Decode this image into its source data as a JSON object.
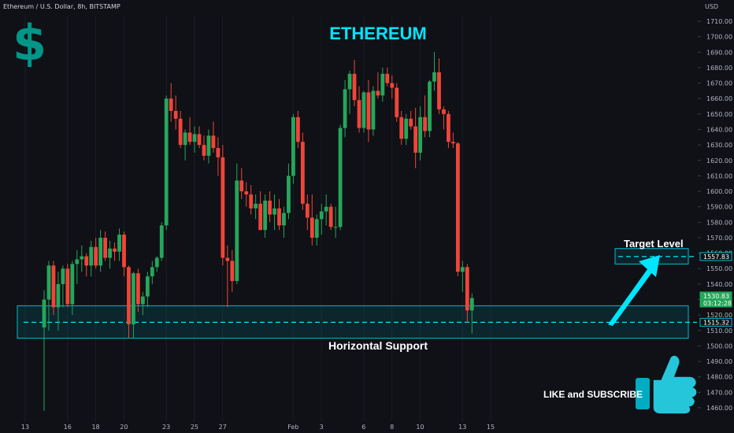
{
  "header": {
    "symbol_line": "Ethereum / U.S. Dollar, 8h, BITSTAMP",
    "currency": "USD"
  },
  "title": "ETHEREUM",
  "logo_symbol": "$",
  "annotations": {
    "target_label": "Target Level",
    "support_label": "Horizontal Support",
    "cta": "LIKE and SUBSCRIBE",
    "thumbs_up_icon": "thumbs-up-icon",
    "arrow_icon": "arrow-up-right-icon"
  },
  "colors": {
    "background": "#0f1116",
    "up": "#26a65b",
    "down": "#f0453a",
    "accent": "#00e5ff",
    "box": "#00bcd4",
    "grid": "#1a1d25",
    "axis_text": "#b2b5be"
  },
  "price_tags": [
    {
      "value": "1557.83",
      "kind": "target"
    },
    {
      "value": "1530.83",
      "kind": "last"
    },
    {
      "value": "03:12:28",
      "kind": "countdown"
    },
    {
      "value": "1515.32",
      "kind": "support"
    }
  ],
  "chart_data": {
    "type": "candlestick",
    "symbol": "Ethereum / U.S. Dollar",
    "interval": "8h",
    "exchange": "BITSTAMP",
    "y_axis_ticks": [
      1460,
      1470,
      1480,
      1490,
      1500,
      1510,
      1520,
      1530,
      1540,
      1550,
      1560,
      1570,
      1580,
      1590,
      1600,
      1610,
      1620,
      1630,
      1640,
      1650,
      1660,
      1670,
      1680,
      1690,
      1700,
      1710
    ],
    "y_tick_labels": [
      "1460.00",
      "1470.00",
      "1480.00",
      "1490.00",
      "1500.00",
      "1510.00",
      "1520.00",
      "1530.00",
      "1540.00",
      "1550.00",
      "1560.00",
      "1570.00",
      "1580.00",
      "1590.00",
      "1600.00",
      "1610.00",
      "1620.00",
      "1630.00",
      "1640.00",
      "1650.00",
      "1660.00",
      "1670.00",
      "1680.00",
      "1690.00",
      "1700.00",
      "1710.00"
    ],
    "ylim": [
      1455,
      1718
    ],
    "x_tick_labels": [
      "13",
      "16",
      "18",
      "20",
      "23",
      "25",
      "27",
      "Feb",
      "3",
      "6",
      "8",
      "10",
      "13",
      "15"
    ],
    "x_tick_positions": [
      0,
      9,
      15,
      21,
      30,
      36,
      42,
      57,
      63,
      72,
      78,
      84,
      93,
      99
    ],
    "ohlc": [
      [
        1512,
        1536,
        1458,
        1530
      ],
      [
        1530,
        1555,
        1510,
        1552
      ],
      [
        1552,
        1555,
        1520,
        1525
      ],
      [
        1525,
        1548,
        1510,
        1540
      ],
      [
        1540,
        1552,
        1525,
        1550
      ],
      [
        1550,
        1553,
        1525,
        1527
      ],
      [
        1527,
        1555,
        1520,
        1553
      ],
      [
        1553,
        1562,
        1540,
        1556
      ],
      [
        1556,
        1565,
        1548,
        1558
      ],
      [
        1558,
        1560,
        1545,
        1552
      ],
      [
        1552,
        1568,
        1545,
        1564
      ],
      [
        1564,
        1570,
        1550,
        1552
      ],
      [
        1552,
        1575,
        1548,
        1570
      ],
      [
        1570,
        1574,
        1555,
        1557
      ],
      [
        1557,
        1568,
        1550,
        1563
      ],
      [
        1563,
        1567,
        1555,
        1561
      ],
      [
        1561,
        1576,
        1555,
        1572
      ],
      [
        1572,
        1574,
        1545,
        1551
      ],
      [
        1551,
        1552,
        1505,
        1514
      ],
      [
        1514,
        1548,
        1505,
        1547
      ],
      [
        1547,
        1550,
        1522,
        1527
      ],
      [
        1527,
        1535,
        1520,
        1532
      ],
      [
        1532,
        1548,
        1525,
        1545
      ],
      [
        1545,
        1555,
        1540,
        1551
      ],
      [
        1551,
        1558,
        1548,
        1557
      ],
      [
        1557,
        1580,
        1555,
        1578
      ],
      [
        1578,
        1662,
        1575,
        1660
      ],
      [
        1660,
        1670,
        1645,
        1652
      ],
      [
        1652,
        1662,
        1640,
        1647
      ],
      [
        1647,
        1652,
        1628,
        1630
      ],
      [
        1630,
        1640,
        1620,
        1638
      ],
      [
        1638,
        1648,
        1630,
        1632
      ],
      [
        1632,
        1642,
        1625,
        1637
      ],
      [
        1637,
        1642,
        1628,
        1630
      ],
      [
        1630,
        1636,
        1620,
        1623
      ],
      [
        1623,
        1640,
        1618,
        1636
      ],
      [
        1636,
        1645,
        1625,
        1628
      ],
      [
        1628,
        1635,
        1610,
        1622
      ],
      [
        1622,
        1630,
        1552,
        1557
      ],
      [
        1557,
        1565,
        1525,
        1555
      ],
      [
        1555,
        1562,
        1535,
        1542
      ],
      [
        1542,
        1618,
        1540,
        1607
      ],
      [
        1607,
        1615,
        1595,
        1600
      ],
      [
        1600,
        1606,
        1590,
        1598
      ],
      [
        1598,
        1604,
        1585,
        1589
      ],
      [
        1589,
        1598,
        1582,
        1592
      ],
      [
        1592,
        1600,
        1575,
        1575
      ],
      [
        1575,
        1598,
        1570,
        1594
      ],
      [
        1594,
        1600,
        1580,
        1585
      ],
      [
        1585,
        1598,
        1575,
        1589
      ],
      [
        1589,
        1595,
        1575,
        1578
      ],
      [
        1578,
        1590,
        1570,
        1586
      ],
      [
        1586,
        1618,
        1582,
        1610
      ],
      [
        1610,
        1650,
        1605,
        1648
      ],
      [
        1648,
        1652,
        1628,
        1632
      ],
      [
        1632,
        1638,
        1588,
        1592
      ],
      [
        1592,
        1598,
        1575,
        1583
      ],
      [
        1583,
        1598,
        1565,
        1570
      ],
      [
        1570,
        1585,
        1565,
        1582
      ],
      [
        1582,
        1592,
        1572,
        1587
      ],
      [
        1587,
        1598,
        1578,
        1590
      ],
      [
        1590,
        1592,
        1575,
        1577
      ],
      [
        1577,
        1590,
        1570,
        1577
      ],
      [
        1577,
        1643,
        1575,
        1641
      ],
      [
        1641,
        1672,
        1635,
        1666
      ],
      [
        1666,
        1678,
        1650,
        1676
      ],
      [
        1676,
        1685,
        1655,
        1659
      ],
      [
        1659,
        1668,
        1638,
        1641
      ],
      [
        1641,
        1665,
        1638,
        1664
      ],
      [
        1664,
        1672,
        1632,
        1640
      ],
      [
        1640,
        1668,
        1636,
        1665
      ],
      [
        1665,
        1677,
        1660,
        1662
      ],
      [
        1662,
        1680,
        1658,
        1676
      ],
      [
        1676,
        1680,
        1668,
        1670
      ],
      [
        1670,
        1675,
        1660,
        1667
      ],
      [
        1667,
        1670,
        1645,
        1648
      ],
      [
        1648,
        1652,
        1630,
        1634
      ],
      [
        1634,
        1650,
        1630,
        1647
      ],
      [
        1647,
        1652,
        1640,
        1642
      ],
      [
        1642,
        1654,
        1615,
        1625
      ],
      [
        1625,
        1655,
        1620,
        1648
      ],
      [
        1648,
        1662,
        1635,
        1639
      ],
      [
        1639,
        1672,
        1635,
        1671
      ],
      [
        1671,
        1690,
        1665,
        1677
      ],
      [
        1677,
        1686,
        1650,
        1653
      ],
      [
        1653,
        1655,
        1640,
        1650
      ],
      [
        1650,
        1652,
        1628,
        1632
      ],
      [
        1632,
        1638,
        1628,
        1631
      ],
      [
        1631,
        1632,
        1545,
        1548
      ],
      [
        1548,
        1555,
        1535,
        1551
      ],
      [
        1551,
        1553,
        1515,
        1523
      ],
      [
        1523,
        1534,
        1508,
        1531
      ]
    ],
    "target_level": 1557.83,
    "support_level": 1515.32,
    "last_price": 1530.83,
    "support_zone": [
      1505,
      1526
    ],
    "target_zone": [
      1553,
      1563
    ],
    "grid": false,
    "title": "ETHEREUM"
  }
}
